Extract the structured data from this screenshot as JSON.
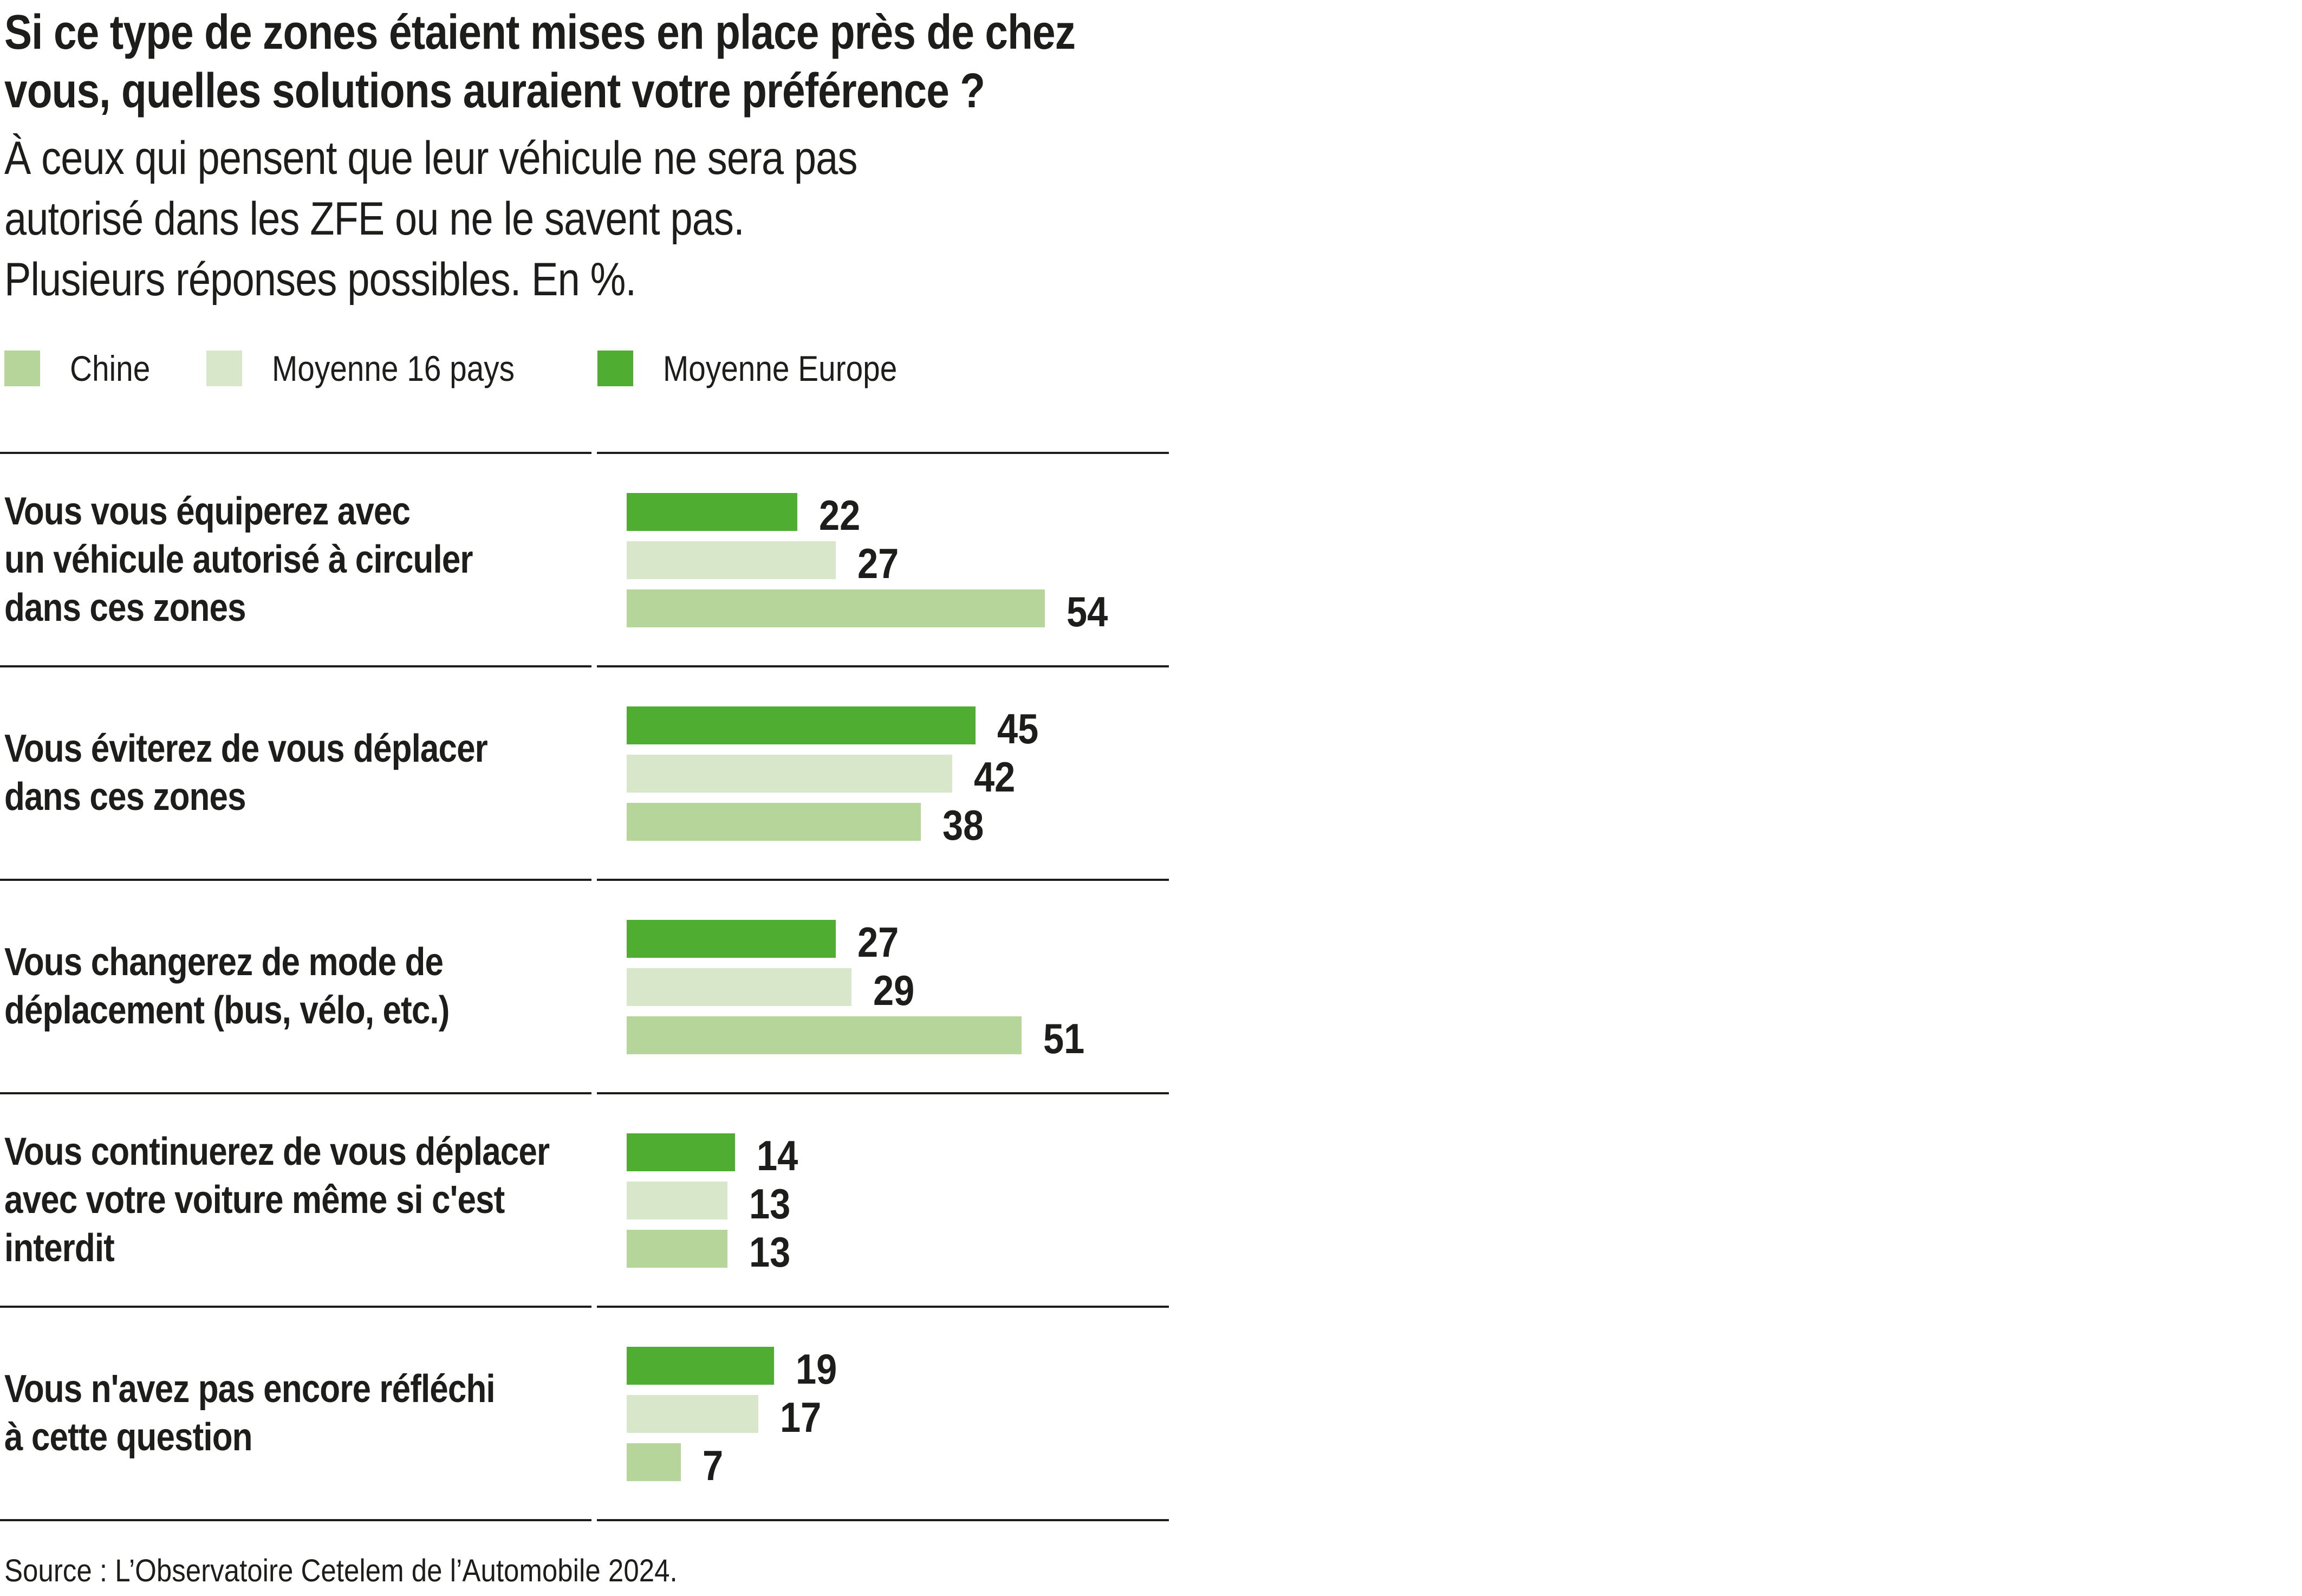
{
  "title": {
    "line1": "Si ce type de zones étaient mises en place près de chez",
    "line2": "vous, quelles solutions auraient votre préférence ?"
  },
  "subtitle": {
    "line1": "À ceux qui pensent que leur véhicule ne sera pas",
    "line2": "autorisé dans les ZFE ou ne le savent pas.",
    "line3": "Plusieurs réponses possibles. En %."
  },
  "legend": [
    {
      "label": "Chine",
      "color": "#B6D59B"
    },
    {
      "label": "Moyenne 16 pays",
      "color": "#D8E7C9"
    },
    {
      "label": "Moyenne Europe",
      "color": "#4FAD32"
    }
  ],
  "colors": {
    "chine": "#B6D59B",
    "moyenne_16_pays": "#D8E7C9",
    "moyenne_europe": "#4FAD32",
    "text": "#1d1d1b",
    "rule": "#1d1d1b",
    "background": "#ffffff"
  },
  "chart_data": {
    "type": "bar",
    "orientation": "horizontal",
    "unit": "%",
    "title": "Si ce type de zones étaient mises en place près de chez vous, quelles solutions auraient votre préférence ?",
    "subtitle": "À ceux qui pensent que leur véhicule ne sera pas autorisé dans les ZFE ou ne le savent pas. Plusieurs réponses possibles. En %.",
    "xlim": [
      0,
      60
    ],
    "grid": false,
    "legend_position": "top",
    "value_labels": true,
    "bar_order_top_to_bottom": [
      "Moyenne Europe",
      "Moyenne 16 pays",
      "Chine"
    ],
    "categories": [
      "Vous vous équiperez avec un véhicule autorisé à circuler dans ces zones",
      "Vous éviterez de vous déplacer dans ces zones",
      "Vous changerez de mode de déplacement (bus, vélo, etc.)",
      "Vous continuerez de vous déplacer avec votre voiture même si c'est interdit",
      "Vous n'avez pas encore réfléchi à cette question"
    ],
    "category_label_lines": [
      [
        "Vous vous équiperez avec",
        "un véhicule autorisé à circuler",
        "dans ces zones"
      ],
      [
        "Vous éviterez de vous déplacer",
        "dans ces zones"
      ],
      [
        "Vous changerez de mode de",
        "déplacement (bus, vélo, etc.)"
      ],
      [
        "Vous continuerez de vous déplacer",
        "avec votre voiture même si c'est",
        "interdit"
      ],
      [
        "Vous n'avez pas encore réfléchi",
        "à cette question"
      ]
    ],
    "series": [
      {
        "name": "Moyenne Europe",
        "color": "#4FAD32",
        "values": [
          22,
          45,
          27,
          14,
          19
        ]
      },
      {
        "name": "Moyenne 16 pays",
        "color": "#D8E7C9",
        "values": [
          27,
          42,
          29,
          13,
          17
        ]
      },
      {
        "name": "Chine",
        "color": "#B6D59B",
        "values": [
          54,
          38,
          51,
          13,
          7
        ]
      }
    ]
  },
  "source": "Source : L’Observatoire Cetelem de l’Automobile 2024."
}
